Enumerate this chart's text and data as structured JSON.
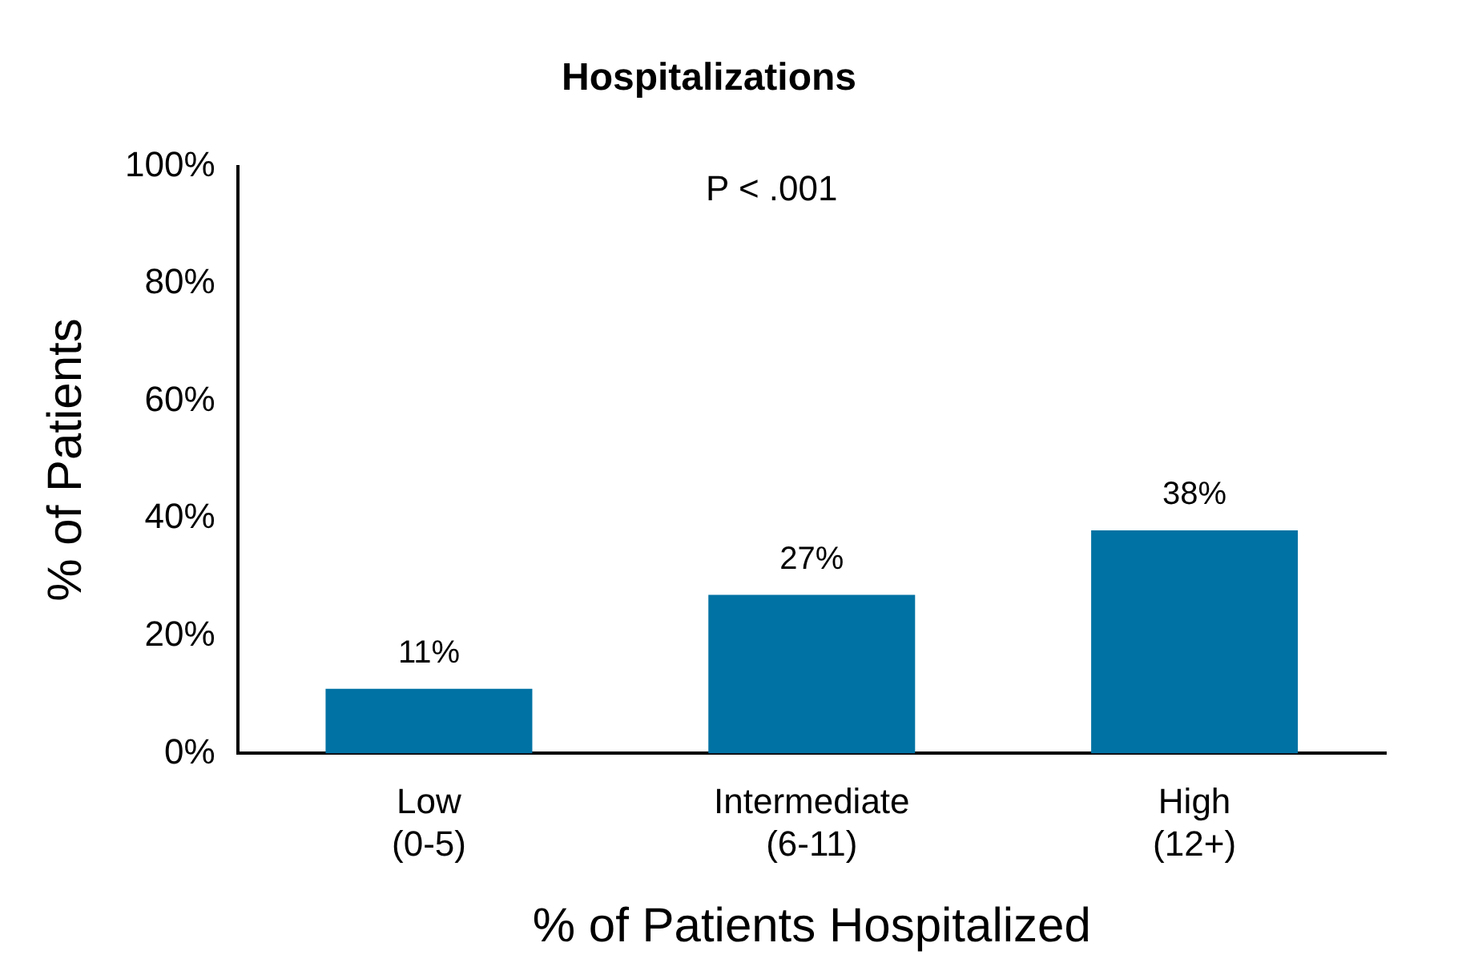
{
  "chart_data": {
    "type": "bar",
    "title": "Hospitalizations",
    "xlabel": "% of Patients Hospitalized",
    "ylabel": "% of Patients",
    "categories": [
      "Low\n(0-5)",
      "Intermediate\n(6-11)",
      "High\n(12+)"
    ],
    "values": [
      11,
      27,
      38
    ],
    "color": "#0072a3",
    "value_labels": [
      "11%",
      "27%",
      "38%"
    ],
    "ylim": [
      0,
      100
    ],
    "yticks": [
      {
        "value": 0,
        "label": "0%"
      },
      {
        "value": 20,
        "label": "20%"
      },
      {
        "value": 40,
        "label": "40%"
      },
      {
        "value": 60,
        "label": "60%"
      },
      {
        "value": 80,
        "label": "80%"
      },
      {
        "value": 100,
        "label": "100%"
      }
    ],
    "annotations": [
      "P < .001"
    ],
    "grid": false,
    "legend": false
  }
}
